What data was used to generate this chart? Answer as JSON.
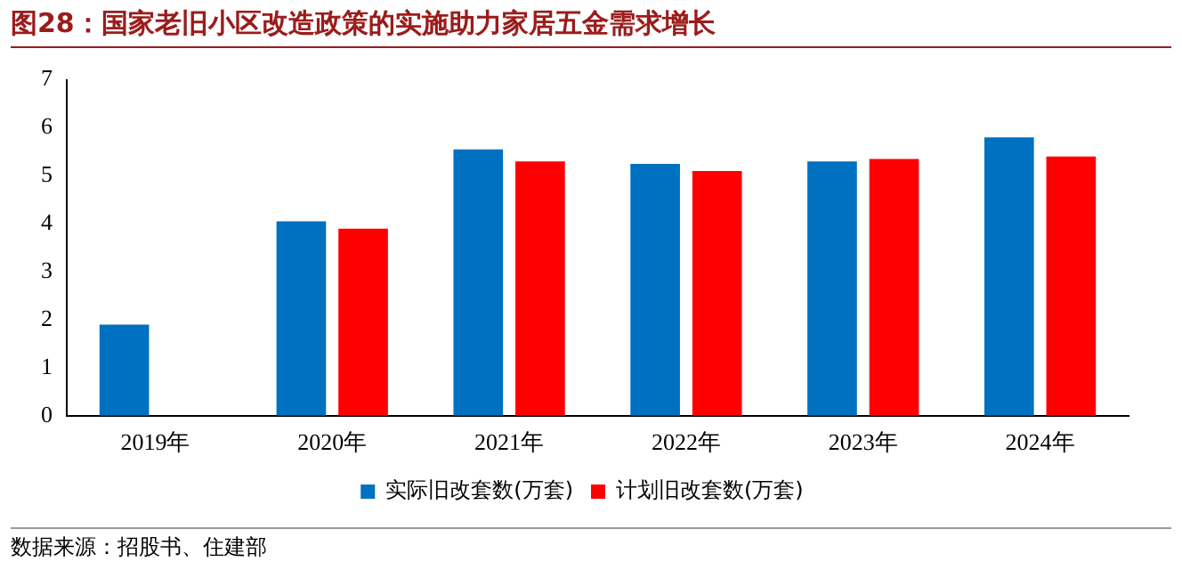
{
  "chart_data": {
    "type": "bar",
    "title": "图28：国家老旧小区改造政策的实施助力家居五金需求增长",
    "categories": [
      "2019年",
      "2020年",
      "2021年",
      "2022年",
      "2023年",
      "2024年"
    ],
    "series": [
      {
        "name": "实际旧改套数(万套)",
        "color": "#0070c0",
        "values": [
          1.9,
          4.05,
          5.55,
          5.25,
          5.3,
          5.8
        ]
      },
      {
        "name": "计划旧改套数(万套)",
        "color": "#ff0000",
        "values": [
          null,
          3.9,
          5.3,
          5.1,
          5.35,
          5.4
        ]
      }
    ],
    "ylim": [
      0,
      7
    ],
    "yticks": [
      0,
      1,
      2,
      3,
      4,
      5,
      6,
      7
    ],
    "grid": false,
    "legend": "bottom",
    "annotations": [
      "数据来源：招股书、住建部"
    ]
  }
}
